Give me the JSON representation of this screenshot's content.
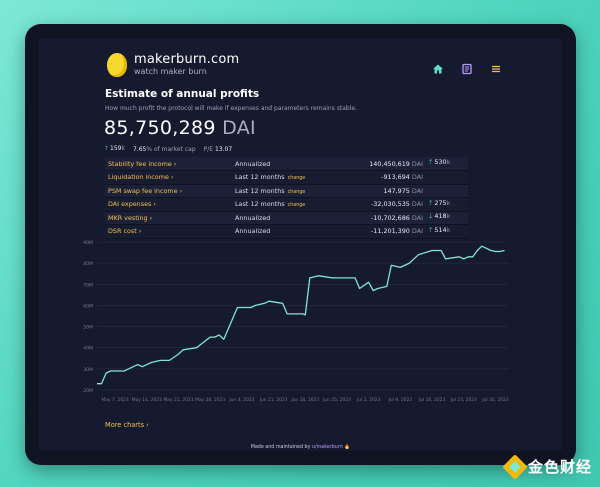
{
  "header": {
    "brand": "makerburn.com",
    "tagline": "watch maker burn",
    "nav_icons": [
      "home-icon",
      "document-icon",
      "menu-icon"
    ]
  },
  "estimate": {
    "title": "Estimate of annual profits",
    "subtitle": "How much profit the protocol will make if expenses and parameters remains stable.",
    "value": "85,750,289",
    "unit": "DAI",
    "stat_up": "159",
    "stat_up_unit": "k",
    "market_cap_pct": "7.65",
    "market_cap_label": "% of market cap",
    "pe_label": "P/E",
    "pe_value": "13.07"
  },
  "rows": [
    {
      "label": "Stability fee income",
      "period": "Annualized",
      "change": "",
      "amount": "140,450,619",
      "unit": "DAI",
      "delta_dir": "up",
      "delta": "530",
      "delta_unit": "k"
    },
    {
      "label": "Liquidation income",
      "period": "Last 12 months",
      "change": "change",
      "amount": "-913,694",
      "unit": "DAI",
      "delta_dir": "",
      "delta": "",
      "delta_unit": ""
    },
    {
      "label": "PSM swap fee income",
      "period": "Last 12 months",
      "change": "change",
      "amount": "147,975",
      "unit": "DAI",
      "delta_dir": "",
      "delta": "",
      "delta_unit": ""
    },
    {
      "label": "DAI expenses",
      "period": "Last 12 months",
      "change": "change",
      "amount": "-32,030,535",
      "unit": "DAI",
      "delta_dir": "up",
      "delta": "275",
      "delta_unit": "k"
    },
    {
      "label": "MKR vesting",
      "period": "Annualized",
      "change": "",
      "amount": "-10,702,686",
      "unit": "DAI",
      "delta_dir": "down",
      "delta": "418",
      "delta_unit": "k"
    },
    {
      "label": "DSR cost",
      "period": "Annualized",
      "change": "",
      "amount": "-11,201,390",
      "unit": "DAI",
      "delta_dir": "up",
      "delta": "514",
      "delta_unit": "k"
    }
  ],
  "chart_data": {
    "type": "line",
    "line_color": "#7fe6cf",
    "ylim": [
      20,
      90
    ],
    "y_ticks": [
      "90M",
      "80M",
      "70M",
      "60M",
      "50M",
      "40M",
      "30M",
      "20M"
    ],
    "x_ticks": [
      "May 7, 2023",
      "May 14, 2023",
      "May 21, 2023",
      "May 28, 2023",
      "Jun 4, 2023",
      "Jun 11, 2023",
      "Jun 18, 2023",
      "Jun 25, 2023",
      "Jul 2, 2023",
      "Jul 9, 2023",
      "Jul 16, 2023",
      "Jul 23, 2023",
      "Jul 30, 2023"
    ],
    "x_tick_days": [
      7,
      14,
      21,
      28,
      35,
      42,
      49,
      56,
      63,
      70,
      77,
      84,
      91
    ],
    "x_range": [
      3,
      94
    ],
    "series": [
      {
        "days": [
          3,
          4,
          5,
          6,
          7,
          9,
          12,
          13,
          15,
          17,
          19,
          21,
          22,
          25,
          28,
          29,
          30,
          31,
          34,
          37,
          38,
          40,
          41,
          44,
          45,
          48,
          48.5,
          49,
          50,
          52,
          55,
          56,
          57,
          58,
          60,
          61,
          63,
          64,
          65,
          67,
          68,
          70,
          72,
          74,
          77,
          79,
          80,
          83,
          84,
          85,
          86,
          87,
          88,
          89,
          90,
          91,
          92,
          93
        ],
        "values": [
          23,
          23,
          28,
          29,
          29,
          29,
          32,
          31,
          33,
          34,
          34,
          37,
          39,
          40,
          45,
          45,
          46,
          44,
          59,
          59,
          60,
          61,
          62,
          61,
          56,
          56,
          56,
          55.5,
          73,
          74,
          73,
          73,
          73,
          73,
          73,
          68,
          71,
          67,
          68,
          69,
          79,
          78,
          80,
          84,
          86,
          86,
          82,
          83,
          82,
          83,
          83,
          86,
          88,
          87,
          86,
          85.5,
          85.5,
          86
        ]
      }
    ]
  },
  "links": {
    "more_charts": "More charts"
  },
  "footer": {
    "text": "Made and maintained by ",
    "handle": "u/makerburn",
    "emoji": "🔥"
  },
  "watermark": {
    "text": "金色财经"
  }
}
